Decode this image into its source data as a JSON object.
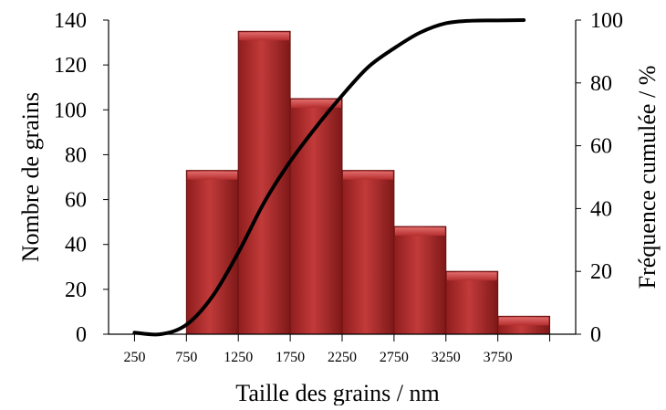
{
  "chart_data": {
    "type": "bar",
    "xlabel": "Taille des grains / nm",
    "ylabel": "Nombre de grains",
    "y2label": "Fréquence cumulée / %",
    "categories": [
      "250",
      "750",
      "1250",
      "1750",
      "2250",
      "2750",
      "3250",
      "3750"
    ],
    "bar_series": {
      "values": [
        0,
        73,
        135,
        105,
        73,
        48,
        28,
        8
      ],
      "color": "#b83232"
    },
    "cumulative_curve": {
      "x": [
        250,
        500,
        750,
        1000,
        1250,
        1500,
        1750,
        2000,
        2250,
        2500,
        2750,
        3000,
        3250,
        3500,
        3750,
        4000
      ],
      "y": [
        0.5,
        0,
        3,
        12,
        26,
        42,
        55,
        66,
        76,
        85,
        91,
        96,
        99,
        99.8,
        99.9,
        100
      ],
      "color": "#000000"
    },
    "ylim": [
      0,
      140
    ],
    "y_ticks": [
      0,
      20,
      40,
      60,
      80,
      100,
      120,
      140
    ],
    "y2lim": [
      0,
      100
    ],
    "y2_ticks": [
      0,
      20,
      40,
      60,
      80,
      100
    ],
    "grid": false,
    "legend": "none"
  }
}
